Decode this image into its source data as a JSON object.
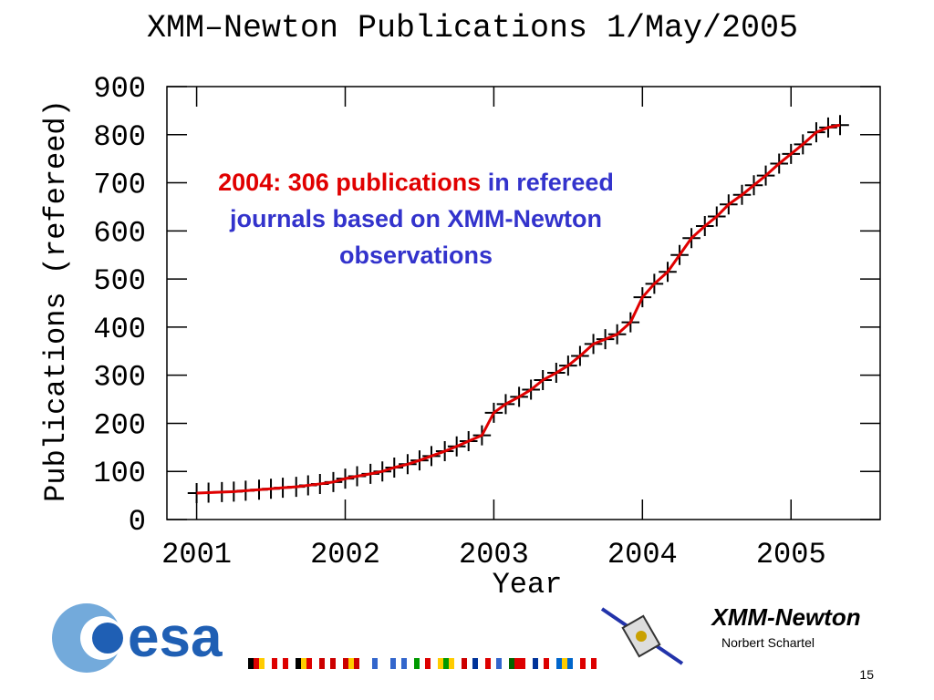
{
  "chart_data": {
    "type": "line",
    "title": "XMM–Newton Publications 1/May/2005",
    "xlabel": "Year",
    "ylabel": "Publications (refereed)",
    "annotation": {
      "highlight": "2004: 306 publications",
      "text": "in refereed journals based on XMM-Newton observations"
    },
    "x": [
      2001.0,
      2001.08,
      2001.17,
      2001.25,
      2001.33,
      2001.42,
      2001.5,
      2001.58,
      2001.67,
      2001.75,
      2001.83,
      2001.92,
      2002.0,
      2002.08,
      2002.17,
      2002.25,
      2002.33,
      2002.42,
      2002.5,
      2002.58,
      2002.67,
      2002.75,
      2002.83,
      2002.92,
      2003.0,
      2003.08,
      2003.17,
      2003.25,
      2003.33,
      2003.42,
      2003.5,
      2003.58,
      2003.67,
      2003.75,
      2003.83,
      2003.92,
      2004.0,
      2004.08,
      2004.17,
      2004.25,
      2004.33,
      2004.42,
      2004.5,
      2004.58,
      2004.67,
      2004.75,
      2004.83,
      2004.92,
      2005.0,
      2005.08,
      2005.17,
      2005.25,
      2005.33
    ],
    "values": [
      55,
      56,
      57,
      58,
      60,
      62,
      64,
      66,
      68,
      71,
      74,
      78,
      85,
      90,
      95,
      100,
      108,
      115,
      123,
      132,
      142,
      152,
      163,
      175,
      222,
      240,
      255,
      270,
      290,
      305,
      320,
      340,
      365,
      375,
      385,
      410,
      462,
      490,
      515,
      550,
      585,
      610,
      630,
      655,
      675,
      695,
      715,
      740,
      760,
      780,
      805,
      815,
      820
    ],
    "line_color": "#e00000",
    "marker_color": "#000000",
    "xlim": [
      2000.8,
      2005.6
    ],
    "ylim": [
      0,
      900
    ],
    "xticks": [
      2001,
      2002,
      2003,
      2004,
      2005
    ],
    "yticks": [
      0,
      100,
      200,
      300,
      400,
      500,
      600,
      700,
      800,
      900
    ]
  },
  "footer": {
    "logo": "esa",
    "mission": "XMM-Newton",
    "author": "Norbert Schartel",
    "page": "15"
  }
}
